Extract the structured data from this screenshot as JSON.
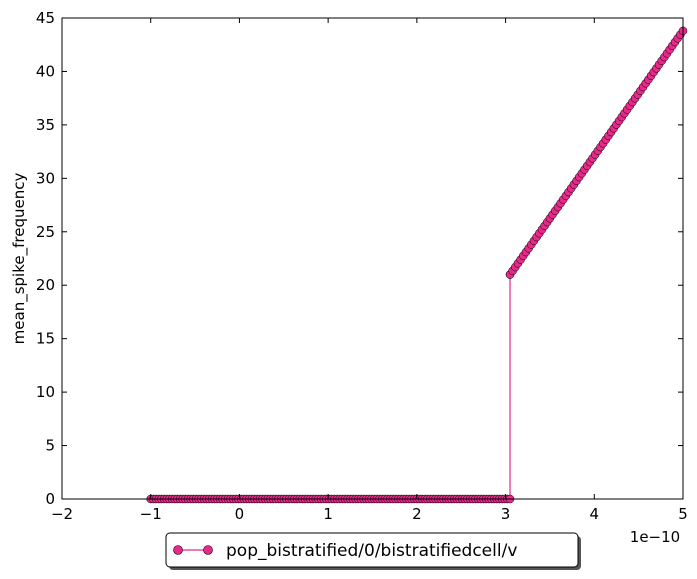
{
  "chart_data": {
    "type": "line",
    "title": "",
    "xlabel": "",
    "ylabel": "mean_spike_frequency",
    "x_offset_text": "1e−10",
    "xlim": [
      -2,
      5
    ],
    "ylim": [
      0,
      45
    ],
    "xticks": [
      -2,
      -1,
      0,
      1,
      2,
      3,
      4,
      5
    ],
    "xtick_labels": [
      "−2",
      "−1",
      "0",
      "1",
      "2",
      "3",
      "4",
      "5"
    ],
    "yticks": [
      0,
      5,
      10,
      15,
      20,
      25,
      30,
      35,
      40,
      45
    ],
    "ytick_labels": [
      "0",
      "5",
      "10",
      "15",
      "20",
      "25",
      "30",
      "35",
      "40",
      "45"
    ],
    "grid": false,
    "legend_position": "bottom-center outside",
    "series": [
      {
        "name": "pop_bistratified/0/bistratifiedcell/v",
        "color": "#e7298a",
        "marker": "circle",
        "x_start": -1.0,
        "x_end": 5.0,
        "x_step": 0.03,
        "threshold_x": 3.05,
        "value_below_threshold": 0,
        "value_at_threshold": 21.0,
        "value_at_end": 43.8
      }
    ]
  }
}
